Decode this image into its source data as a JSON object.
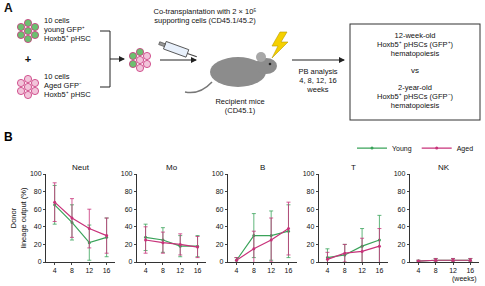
{
  "diagram": {
    "panel_label": "A",
    "young_group": [
      "10 cells",
      "young GFP⁺",
      "Hoxb5⁺ pHSC"
    ],
    "plus": "+",
    "aged_group": [
      "10 cells",
      "Aged GFP⁻",
      "Hoxb5⁺ pHSC"
    ],
    "transplant": [
      "Co-transplantation with 2 × 10⁵",
      "supporting cells (CD45.1/45.2)"
    ],
    "recipient": [
      "Recipient mice",
      "(CD45.1)"
    ],
    "analysis": [
      "PB analysis",
      "4, 8, 12, 16",
      "weeks"
    ],
    "result_top": [
      "12-week-old",
      "Hoxb5⁺ pHSCs (GFP⁺)",
      "hematopoiesis"
    ],
    "result_vs": "vs",
    "result_bottom": [
      "2-year-old",
      "Hoxb5⁺ pHSCs (GFP⁻)",
      "hematopoiesis"
    ]
  },
  "panel_b_label": "B",
  "chart_data": [
    {
      "type": "line",
      "title": "Neut",
      "y_label": [
        "Donor",
        "lineage output (%)"
      ],
      "x": [
        4,
        8,
        12,
        16
      ],
      "xlim": [
        2,
        18
      ],
      "xticks": [
        4,
        8,
        12,
        16
      ],
      "ylim": [
        0,
        100
      ],
      "yticks": [
        0,
        20,
        40,
        60,
        80,
        100
      ],
      "grid": false,
      "series": [
        {
          "name": "Young",
          "color": "#3aa35a",
          "values": [
            65,
            45,
            22,
            28
          ],
          "error": [
            22,
            20,
            20,
            22
          ]
        },
        {
          "name": "Aged",
          "color": "#c8327a",
          "values": [
            68,
            50,
            38,
            30
          ],
          "error": [
            22,
            22,
            22,
            20
          ]
        }
      ]
    },
    {
      "type": "line",
      "title": "Mo",
      "x": [
        4,
        8,
        12,
        16
      ],
      "xlim": [
        2,
        18
      ],
      "xticks": [
        4,
        8,
        12,
        16
      ],
      "ylim": [
        0,
        100
      ],
      "yticks": [
        0,
        20,
        40,
        60,
        80,
        100
      ],
      "grid": false,
      "series": [
        {
          "name": "Young",
          "color": "#3aa35a",
          "values": [
            28,
            25,
            18,
            18
          ],
          "error": [
            15,
            14,
            12,
            12
          ]
        },
        {
          "name": "Aged",
          "color": "#c8327a",
          "values": [
            25,
            22,
            20,
            17
          ],
          "error": [
            15,
            12,
            12,
            12
          ]
        }
      ]
    },
    {
      "type": "line",
      "title": "B",
      "x": [
        4,
        8,
        12,
        16
      ],
      "xlim": [
        2,
        18
      ],
      "xticks": [
        4,
        8,
        12,
        16
      ],
      "ylim": [
        0,
        100
      ],
      "yticks": [
        0,
        20,
        40,
        60,
        80,
        100
      ],
      "grid": false,
      "series": [
        {
          "name": "Young",
          "color": "#3aa35a",
          "values": [
            2,
            30,
            30,
            35
          ],
          "error": [
            3,
            25,
            28,
            30
          ]
        },
        {
          "name": "Aged",
          "color": "#c8327a",
          "values": [
            2,
            15,
            25,
            38
          ],
          "error": [
            3,
            20,
            25,
            30
          ]
        }
      ]
    },
    {
      "type": "line",
      "title": "T",
      "x": [
        4,
        8,
        12,
        16
      ],
      "xlim": [
        2,
        18
      ],
      "xticks": [
        4,
        8,
        12,
        16
      ],
      "ylim": [
        0,
        100
      ],
      "yticks": [
        0,
        20,
        40,
        60,
        80,
        100
      ],
      "grid": false,
      "series": [
        {
          "name": "Young",
          "color": "#3aa35a",
          "values": [
            5,
            8,
            18,
            25
          ],
          "error": [
            10,
            12,
            20,
            28
          ]
        },
        {
          "name": "Aged",
          "color": "#c8327a",
          "values": [
            3,
            10,
            12,
            18
          ],
          "error": [
            8,
            10,
            15,
            20
          ]
        }
      ]
    },
    {
      "type": "line",
      "title": "NK",
      "x_label": "(weeks)",
      "legend": "upper right",
      "x": [
        4,
        8,
        12,
        16
      ],
      "xlim": [
        2,
        18
      ],
      "xticks": [
        4,
        8,
        12,
        16
      ],
      "ylim": [
        0,
        100
      ],
      "yticks": [
        0,
        20,
        40,
        60,
        80,
        100
      ],
      "grid": false,
      "series": [
        {
          "name": "Young",
          "color": "#3aa35a",
          "values": [
            1,
            2,
            2,
            2
          ],
          "error": [
            1,
            2,
            2,
            2
          ]
        },
        {
          "name": "Aged",
          "color": "#c8327a",
          "values": [
            1,
            2,
            2,
            2
          ],
          "error": [
            1,
            2,
            2,
            2
          ]
        }
      ]
    }
  ]
}
